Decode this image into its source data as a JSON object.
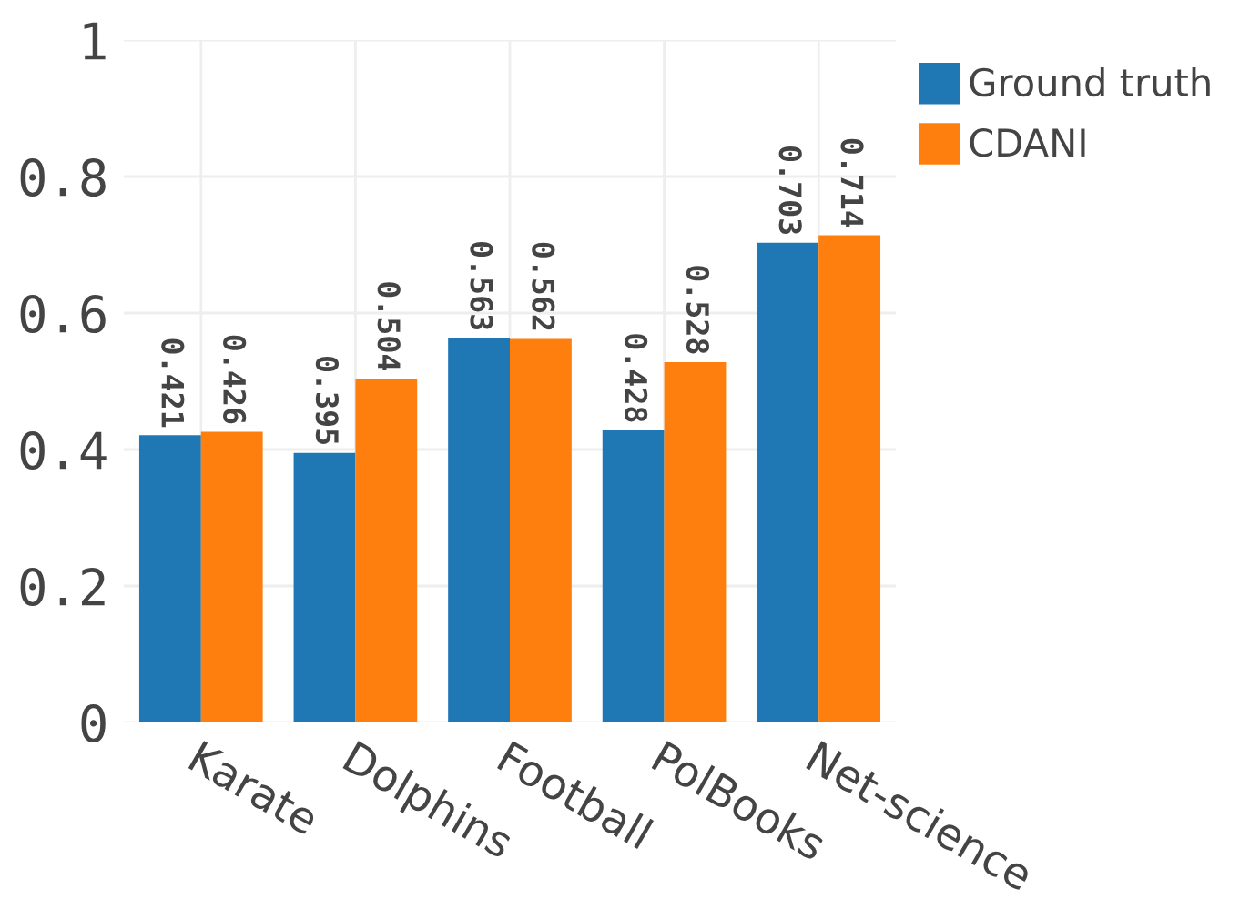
{
  "chart_data": {
    "type": "bar",
    "categories": [
      "Karate",
      "Dolphins",
      "Football",
      "PolBooks",
      "Net-science"
    ],
    "series": [
      {
        "name": "Ground truth",
        "color": "#1f77b4",
        "values": [
          0.421,
          0.395,
          0.563,
          0.428,
          0.703
        ]
      },
      {
        "name": "CDANI",
        "color": "#ff7f0e",
        "values": [
          0.426,
          0.504,
          0.562,
          0.528,
          0.714
        ]
      }
    ],
    "ylim": [
      0,
      1
    ],
    "yticks": [
      0,
      0.2,
      0.4,
      0.6,
      0.8,
      1
    ],
    "grid": true,
    "legend": "top right",
    "data_labels": true
  }
}
